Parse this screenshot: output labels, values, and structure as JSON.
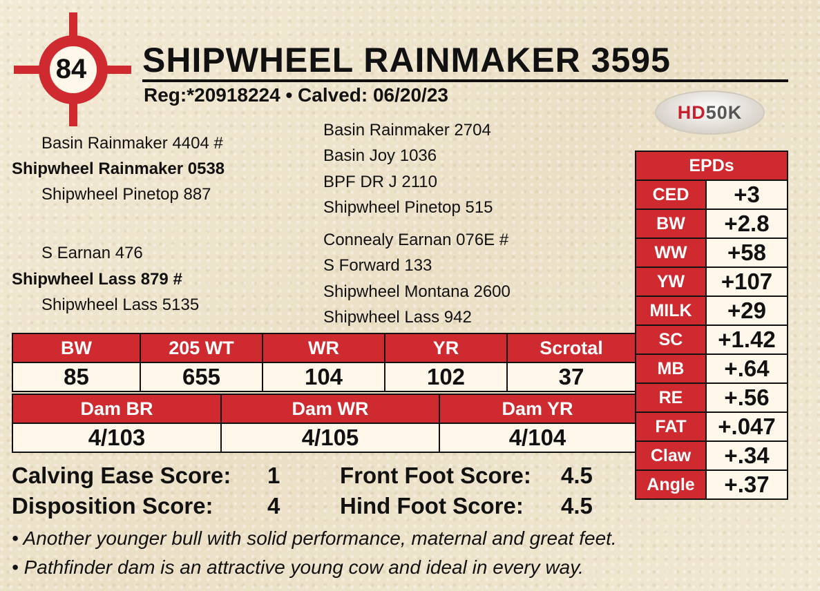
{
  "lot_number": "84",
  "title": "SHIPWHEEL RAINMAKER 3595",
  "registration": "Reg:*20918224 • Calved: 06/20/23",
  "logo": {
    "hd": "HD",
    "k": "50K"
  },
  "pedigree": {
    "sire": "Shipwheel Rainmaker 0538",
    "sire_sire": "Basin Rainmaker 4404 #",
    "sire_dam": "Shipwheel Pinetop 887",
    "sire_sire_sire": "Basin Rainmaker 2704",
    "sire_sire_dam": "Basin Joy 1036",
    "sire_dam_sire": "BPF DR J 2110",
    "sire_dam_dam": "Shipwheel Pinetop 515",
    "dam": "Shipwheel Lass 879 #",
    "dam_sire": "S Earnan 476",
    "dam_dam": "Shipwheel Lass 5135",
    "dam_sire_sire": "Connealy Earnan 076E #",
    "dam_sire_dam": "S Forward 133",
    "dam_dam_sire": "Shipwheel Montana 2600",
    "dam_dam_dam": "Shipwheel Lass 942"
  },
  "performance": {
    "headers": [
      "BW",
      "205 WT",
      "WR",
      "YR",
      "Scrotal"
    ],
    "values": [
      "85",
      "655",
      "104",
      "102",
      "37"
    ]
  },
  "dam_performance": {
    "headers": [
      "Dam BR",
      "Dam WR",
      "Dam YR"
    ],
    "values": [
      "4/103",
      "4/105",
      "4/104"
    ]
  },
  "epds": {
    "title": "EPDs",
    "rows": [
      {
        "label": "CED",
        "value": "+3"
      },
      {
        "label": "BW",
        "value": "+2.8"
      },
      {
        "label": "WW",
        "value": "+58"
      },
      {
        "label": "YW",
        "value": "+107"
      },
      {
        "label": "MILK",
        "value": "+29"
      },
      {
        "label": "SC",
        "value": "+1.42"
      },
      {
        "label": "MB",
        "value": "+.64"
      },
      {
        "label": "RE",
        "value": "+.56"
      },
      {
        "label": "FAT",
        "value": "+.047"
      },
      {
        "label": "Claw",
        "value": "+.34"
      },
      {
        "label": "Angle",
        "value": "+.37"
      }
    ]
  },
  "scores": {
    "calving_ease_label": "Calving Ease Score:",
    "calving_ease_value": "1",
    "disposition_label": "Disposition Score:",
    "disposition_value": "4",
    "front_foot_label": "Front Foot Score:",
    "front_foot_value": "4.5",
    "hind_foot_label": "Hind Foot Score:",
    "hind_foot_value": "4.5"
  },
  "notes": [
    "• Another younger bull with solid performance, maternal and great feet.",
    "• Pathfinder dam is an attractive young cow and ideal in every way."
  ],
  "colors": {
    "accent_red": "#cf2a30",
    "cell_bg": "#fff8ea"
  }
}
